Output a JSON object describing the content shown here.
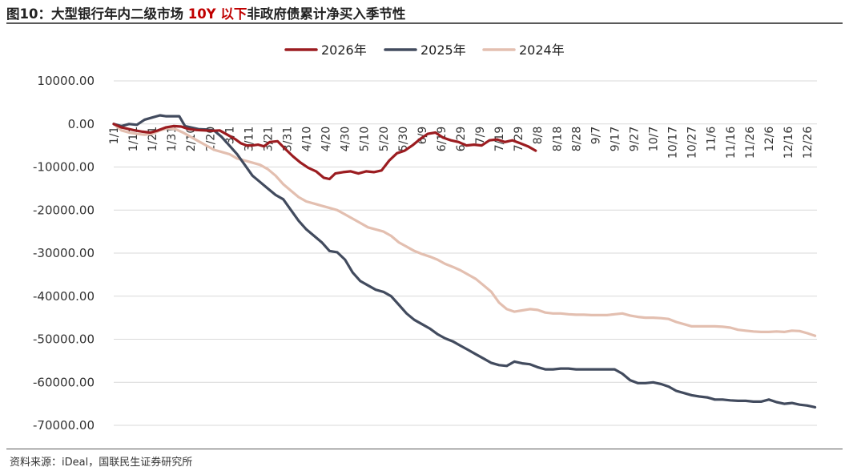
{
  "title": {
    "prefix": "图10：大型银行年内二级市场 ",
    "highlight": "10Y 以下",
    "suffix": "非政府债累计净买入季节性"
  },
  "source": "资料来源：iDeal，国联民生证券研究所",
  "colors": {
    "s2026": "#9b1c20",
    "s2025": "#424b5e",
    "s2024": "#e3bfb0",
    "grid": "#d9d9d9",
    "title_highlight": "#c00000"
  },
  "chart_data": {
    "type": "line",
    "title": "图10：大型银行年内二级市场 10Y 以下非政府债累计净买入季节性",
    "xlabel": "",
    "ylabel": "",
    "ylim": [
      -70000,
      10000
    ],
    "yticks": [
      10000,
      0,
      -10000,
      -20000,
      -30000,
      -40000,
      -50000,
      -60000,
      -70000
    ],
    "ytick_labels": [
      "10000.00",
      "0.00",
      "-10000.00",
      "-20000.00",
      "-30000.00",
      "-40000.00",
      "-50000.00",
      "-60000.00",
      "-70000.00"
    ],
    "x_tick_labels": [
      "1/1",
      "1/11",
      "1/21",
      "1/31",
      "2/10",
      "2/20",
      "3/1",
      "3/11",
      "3/21",
      "3/31",
      "4/10",
      "4/20",
      "4/30",
      "5/10",
      "5/20",
      "5/30",
      "6/9",
      "6/19",
      "6/29",
      "7/9",
      "7/19",
      "7/29",
      "8/8",
      "8/18",
      "8/28",
      "9/7",
      "9/17",
      "9/27",
      "10/7",
      "10/17",
      "10/27",
      "11/6",
      "11/16",
      "11/26",
      "12/6",
      "12/16",
      "12/26"
    ],
    "x_unit": "day of year (1 = 1/1)",
    "x_range": [
      1,
      366
    ],
    "grid": true,
    "legend_position": "top",
    "series": [
      {
        "name": "2026年",
        "color": "#9b1c20",
        "x": [
          1,
          5,
          9,
          12,
          16,
          20,
          24,
          28,
          32,
          36,
          40,
          44,
          48,
          52,
          56,
          60,
          64,
          67,
          70,
          73,
          76,
          79,
          82,
          86,
          90,
          94,
          98,
          102,
          106,
          110,
          113,
          116,
          120,
          124,
          128,
          132,
          136,
          140,
          144,
          148,
          152,
          156,
          160,
          164,
          168,
          172,
          176,
          180,
          184,
          188,
          192,
          196,
          200,
          204,
          208,
          212,
          216,
          220
        ],
        "y": [
          0,
          -800,
          -1200,
          -1500,
          -1800,
          -2000,
          -1500,
          -800,
          -500,
          -600,
          -1200,
          -1400,
          -1500,
          -1600,
          -1500,
          -2500,
          -3500,
          -4500,
          -5000,
          -5000,
          -4800,
          -5200,
          -4200,
          -4000,
          -5800,
          -7500,
          -9000,
          -10200,
          -11000,
          -12500,
          -12800,
          -11500,
          -11200,
          -11000,
          -11500,
          -11000,
          -11200,
          -10800,
          -8500,
          -6800,
          -6200,
          -5000,
          -3500,
          -2300,
          -2000,
          -3200,
          -3800,
          -4200,
          -5000,
          -4800,
          -5000,
          -3800,
          -3600,
          -4200,
          -3800,
          -4500,
          -5200,
          -6200
        ]
      },
      {
        "name": "2025年",
        "color": "#424b5e",
        "x": [
          1,
          5,
          9,
          13,
          17,
          21,
          25,
          28,
          31,
          35,
          38,
          41,
          45,
          49,
          53,
          57,
          61,
          65,
          69,
          73,
          77,
          81,
          85,
          89,
          93,
          97,
          101,
          105,
          109,
          113,
          117,
          121,
          125,
          129,
          133,
          137,
          141,
          145,
          149,
          153,
          157,
          161,
          165,
          169,
          173,
          177,
          181,
          185,
          189,
          193,
          197,
          201,
          205,
          209,
          213,
          217,
          221,
          225,
          229,
          233,
          237,
          241,
          245,
          249,
          253,
          257,
          261,
          265,
          269,
          273,
          277,
          281,
          285,
          289,
          293,
          297,
          301,
          305,
          309,
          313,
          317,
          321,
          325,
          329,
          333,
          337,
          341,
          345,
          349,
          353,
          357,
          361,
          365
        ],
        "y": [
          0,
          -500,
          0,
          -200,
          1000,
          1500,
          2000,
          1800,
          1800,
          1800,
          -500,
          -800,
          -1200,
          -1300,
          -1500,
          -3000,
          -5000,
          -7000,
          -9500,
          -12000,
          -13500,
          -15000,
          -16500,
          -17500,
          -20000,
          -22500,
          -24500,
          -26000,
          -27500,
          -29500,
          -29800,
          -31500,
          -34500,
          -36500,
          -37500,
          -38500,
          -39000,
          -40000,
          -42000,
          -44000,
          -45500,
          -46500,
          -47500,
          -48800,
          -49800,
          -50500,
          -51500,
          -52500,
          -53500,
          -54500,
          -55500,
          -56000,
          -56200,
          -55200,
          -55600,
          -55800,
          -56500,
          -57000,
          -57000,
          -56800,
          -56800,
          -57000,
          -57000,
          -57000,
          -57000,
          -57000,
          -57000,
          -58000,
          -59500,
          -60200,
          -60200,
          -60000,
          -60400,
          -61000,
          -62000,
          -62500,
          -63000,
          -63300,
          -63500,
          -64000,
          -64000,
          -64200,
          -64300,
          -64300,
          -64500,
          -64500,
          -64000,
          -64600,
          -65000,
          -64800,
          -65200,
          -65400,
          -65800
        ]
      },
      {
        "name": "2024年",
        "color": "#e3bfb0",
        "x": [
          1,
          5,
          9,
          13,
          17,
          21,
          25,
          29,
          33,
          37,
          41,
          45,
          49,
          53,
          57,
          61,
          65,
          69,
          73,
          77,
          81,
          85,
          89,
          93,
          97,
          101,
          105,
          109,
          113,
          117,
          121,
          125,
          129,
          133,
          137,
          141,
          145,
          149,
          153,
          157,
          161,
          165,
          169,
          173,
          177,
          181,
          185,
          189,
          193,
          197,
          201,
          205,
          209,
          213,
          217,
          221,
          225,
          229,
          233,
          237,
          241,
          245,
          249,
          253,
          257,
          261,
          265,
          269,
          273,
          277,
          281,
          285,
          289,
          293,
          297,
          301,
          305,
          309,
          313,
          317,
          321,
          325,
          329,
          333,
          337,
          341,
          345,
          349,
          353,
          357,
          361,
          365
        ],
        "y": [
          0,
          -1500,
          -2000,
          -2300,
          -2500,
          -2300,
          -1500,
          -1000,
          -1200,
          -2000,
          -3000,
          -4000,
          -5000,
          -6000,
          -6500,
          -7000,
          -8000,
          -8500,
          -9000,
          -9500,
          -10500,
          -12000,
          -14000,
          -15500,
          -17000,
          -18000,
          -18500,
          -19000,
          -19500,
          -20000,
          -21000,
          -22000,
          -23000,
          -24000,
          -24500,
          -25000,
          -26000,
          -27500,
          -28500,
          -29500,
          -30200,
          -30800,
          -31500,
          -32500,
          -33200,
          -34000,
          -35000,
          -36000,
          -37500,
          -39000,
          -41500,
          -43000,
          -43600,
          -43300,
          -43000,
          -43200,
          -43800,
          -44000,
          -44000,
          -44200,
          -44300,
          -44300,
          -44400,
          -44400,
          -44400,
          -44200,
          -44000,
          -44500,
          -44800,
          -45000,
          -45000,
          -45100,
          -45300,
          -46000,
          -46500,
          -47000,
          -47000,
          -47000,
          -47000,
          -47100,
          -47300,
          -47800,
          -48000,
          -48200,
          -48300,
          -48300,
          -48200,
          -48300,
          -48000,
          -48100,
          -48600,
          -49200
        ]
      }
    ]
  }
}
